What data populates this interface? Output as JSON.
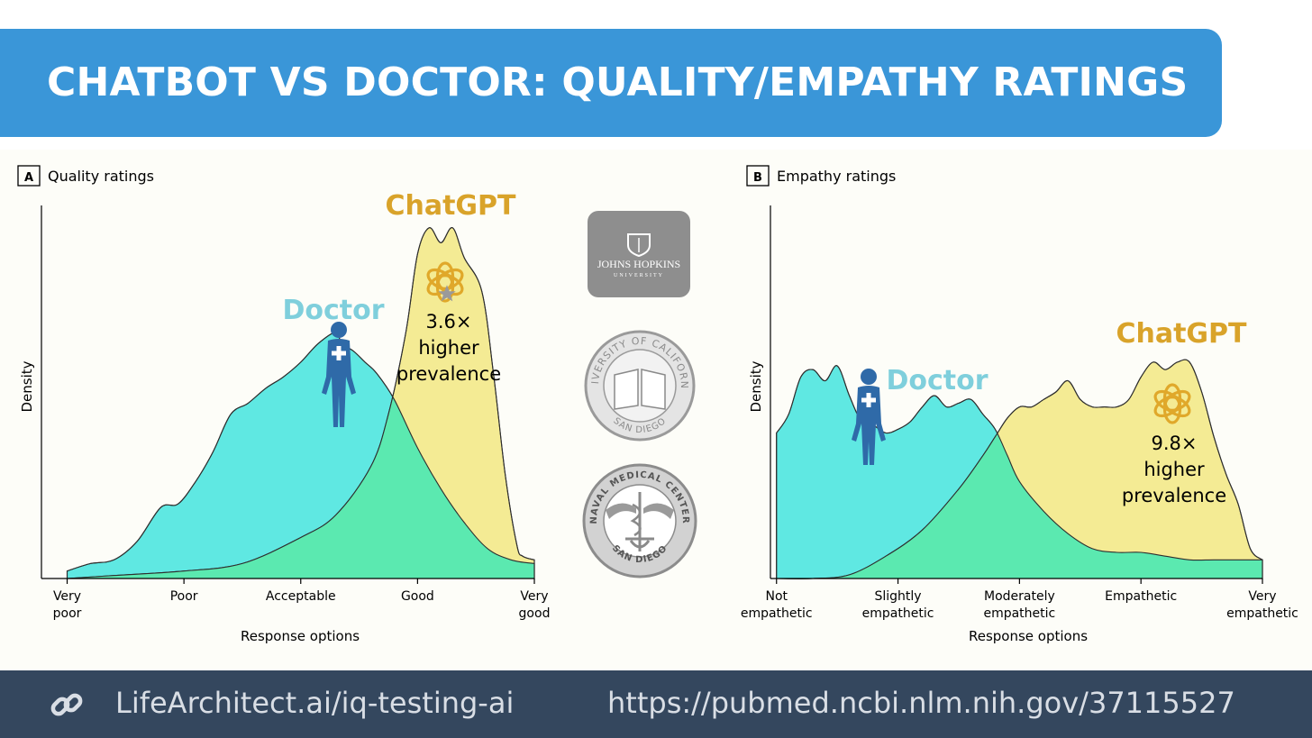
{
  "header": {
    "title": "CHATBOT VS DOCTOR: QUALITY/EMPATHY RATINGS"
  },
  "footer": {
    "link_label": "LifeArchitect.ai/iq-testing-ai",
    "source_url": "https://pubmed.ncbi.nlm.nih.gov/37115527",
    "icon": "link-icon"
  },
  "logos": {
    "jhu": {
      "line1": "JOHNS HOPKINS",
      "line2": "UNIVERSITY"
    },
    "ucsd": {
      "ring_top": "UNIVERSITY OF CALIFORNIA",
      "ring_bottom": "SAN DIEGO"
    },
    "navy": {
      "ring_top": "NAVAL MEDICAL CENTER",
      "ring_bottom": "SAN DIEGO"
    }
  },
  "colors": {
    "doctor": "#5fe8e2",
    "chatgpt": "#f4eb94",
    "overlap": "#5be9b0",
    "doctor_label": "#7fcfdc",
    "chatgpt_label": "#d9a32a",
    "figure_icon": "#2f6aa8"
  },
  "chart_data": [
    {
      "type": "area",
      "panel": "A",
      "title": "Quality ratings",
      "xlabel": "Response options",
      "ylabel": "Density",
      "x_ticks": [
        {
          "x": 1,
          "label": [
            "Very",
            "poor"
          ]
        },
        {
          "x": 2,
          "label": [
            "Poor"
          ]
        },
        {
          "x": 3,
          "label": [
            "Acceptable"
          ]
        },
        {
          "x": 4,
          "label": [
            "Good"
          ]
        },
        {
          "x": 5,
          "label": [
            "Very",
            "good"
          ]
        }
      ],
      "xlim": [
        0.78,
        5.0
      ],
      "ylim": [
        0,
        1.0
      ],
      "series": [
        {
          "name": "Doctor",
          "color_key": "doctor",
          "x": [
            1.0,
            1.2,
            1.4,
            1.6,
            1.8,
            1.95,
            2.1,
            2.25,
            2.4,
            2.55,
            2.7,
            2.85,
            3.0,
            3.15,
            3.3,
            3.35,
            3.45,
            3.55,
            3.65,
            3.8,
            4.0,
            4.2,
            4.4,
            4.6,
            4.8,
            5.0
          ],
          "y": [
            0.02,
            0.04,
            0.05,
            0.1,
            0.19,
            0.2,
            0.26,
            0.34,
            0.44,
            0.47,
            0.51,
            0.54,
            0.58,
            0.63,
            0.66,
            0.63,
            0.61,
            0.58,
            0.55,
            0.48,
            0.35,
            0.24,
            0.15,
            0.08,
            0.05,
            0.04
          ]
        },
        {
          "name": "ChatGPT",
          "color_key": "chatgpt",
          "x": [
            1.0,
            1.5,
            2.0,
            2.5,
            3.0,
            3.3,
            3.6,
            3.75,
            3.9,
            4.0,
            4.1,
            4.2,
            4.3,
            4.4,
            4.55,
            4.65,
            4.75,
            4.85,
            4.9,
            5.0
          ],
          "y": [
            0.0,
            0.01,
            0.02,
            0.04,
            0.11,
            0.17,
            0.3,
            0.44,
            0.66,
            0.87,
            0.94,
            0.9,
            0.94,
            0.86,
            0.77,
            0.55,
            0.28,
            0.09,
            0.06,
            0.05
          ]
        }
      ],
      "annotations": {
        "doctor_label": "Doctor",
        "chatgpt_label": "ChatGPT",
        "callout_ratio": "3.6×",
        "callout_text": [
          "higher",
          "prevalence"
        ]
      }
    },
    {
      "type": "area",
      "panel": "B",
      "title": "Empathy ratings",
      "xlabel": "Response options",
      "ylabel": "Density",
      "x_ticks": [
        {
          "x": 1,
          "label": [
            "Not",
            "empathetic"
          ]
        },
        {
          "x": 2,
          "label": [
            "Slightly",
            "empathetic"
          ]
        },
        {
          "x": 3,
          "label": [
            "Moderately",
            "empathetic"
          ]
        },
        {
          "x": 4,
          "label": [
            "Empathetic"
          ]
        },
        {
          "x": 5,
          "label": [
            "Very",
            "empathetic"
          ]
        }
      ],
      "xlim": [
        0.95,
        5.0
      ],
      "ylim": [
        0,
        1.0
      ],
      "series": [
        {
          "name": "Doctor",
          "color_key": "doctor",
          "x": [
            1.0,
            1.1,
            1.2,
            1.3,
            1.4,
            1.5,
            1.6,
            1.7,
            1.8,
            1.9,
            2.0,
            2.1,
            2.2,
            2.3,
            2.4,
            2.5,
            2.6,
            2.7,
            2.8,
            2.9,
            3.0,
            3.2,
            3.4,
            3.6,
            3.8,
            4.0,
            4.2,
            4.4,
            4.6,
            4.8,
            5.0
          ],
          "y": [
            0.39,
            0.44,
            0.54,
            0.56,
            0.53,
            0.57,
            0.49,
            0.42,
            0.41,
            0.39,
            0.4,
            0.42,
            0.46,
            0.49,
            0.46,
            0.47,
            0.48,
            0.44,
            0.4,
            0.33,
            0.26,
            0.18,
            0.12,
            0.08,
            0.07,
            0.07,
            0.06,
            0.05,
            0.05,
            0.05,
            0.05
          ]
        },
        {
          "name": "ChatGPT",
          "color_key": "chatgpt",
          "x": [
            1.0,
            1.3,
            1.6,
            1.9,
            2.2,
            2.5,
            2.7,
            2.8,
            2.9,
            3.0,
            3.1,
            3.2,
            3.3,
            3.4,
            3.5,
            3.6,
            3.7,
            3.8,
            3.9,
            4.0,
            4.1,
            4.2,
            4.3,
            4.4,
            4.5,
            4.6,
            4.7,
            4.8,
            4.9,
            5.0
          ],
          "y": [
            0.0,
            0.0,
            0.01,
            0.06,
            0.13,
            0.24,
            0.33,
            0.38,
            0.43,
            0.46,
            0.46,
            0.48,
            0.5,
            0.53,
            0.48,
            0.46,
            0.46,
            0.46,
            0.48,
            0.54,
            0.58,
            0.56,
            0.58,
            0.58,
            0.5,
            0.38,
            0.28,
            0.2,
            0.08,
            0.05
          ]
        }
      ],
      "annotations": {
        "doctor_label": "Doctor",
        "chatgpt_label": "ChatGPT",
        "callout_ratio": "9.8×",
        "callout_text": [
          "higher",
          "prevalence"
        ]
      }
    }
  ]
}
